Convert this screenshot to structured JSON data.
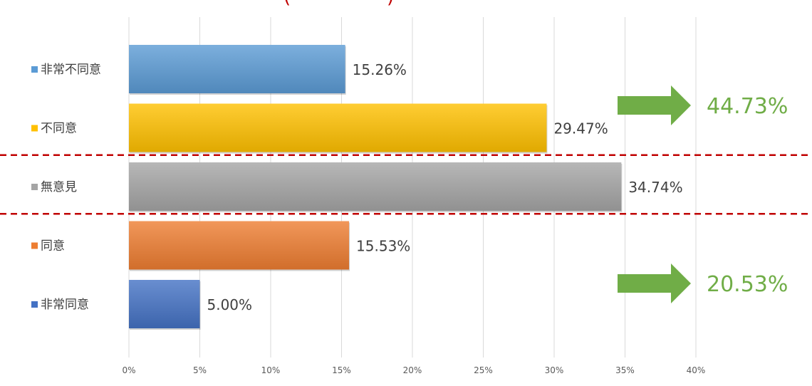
{
  "chart_data": {
    "type": "bar",
    "orientation": "horizontal",
    "title": "",
    "xlabel": "",
    "ylabel": "",
    "xlim": [
      0,
      40
    ],
    "x_ticks": [
      "0%",
      "5%",
      "10%",
      "15%",
      "20%",
      "25%",
      "30%",
      "35%",
      "40%"
    ],
    "grid": "vertical",
    "categories": [
      "非常不同意",
      "不同意",
      "無意見",
      "同意",
      "非常同意"
    ],
    "values": [
      15.26,
      29.47,
      34.74,
      15.53,
      5.0
    ],
    "value_labels": [
      "15.26%",
      "29.47%",
      "34.74%",
      "15.53%",
      "5.00%"
    ],
    "colors": [
      "#5b9bd5",
      "#ffc000",
      "#a5a5a5",
      "#ed7d31",
      "#4472c4"
    ],
    "summaries": [
      {
        "label": "44.73%",
        "covers": [
          "非常不同意",
          "不同意"
        ]
      },
      {
        "label": "20.53%",
        "covers": [
          "同意",
          "非常同意"
        ]
      }
    ],
    "summary_color": "#70ad47",
    "divider_color": "#c00000",
    "title_color": "#c00000"
  }
}
